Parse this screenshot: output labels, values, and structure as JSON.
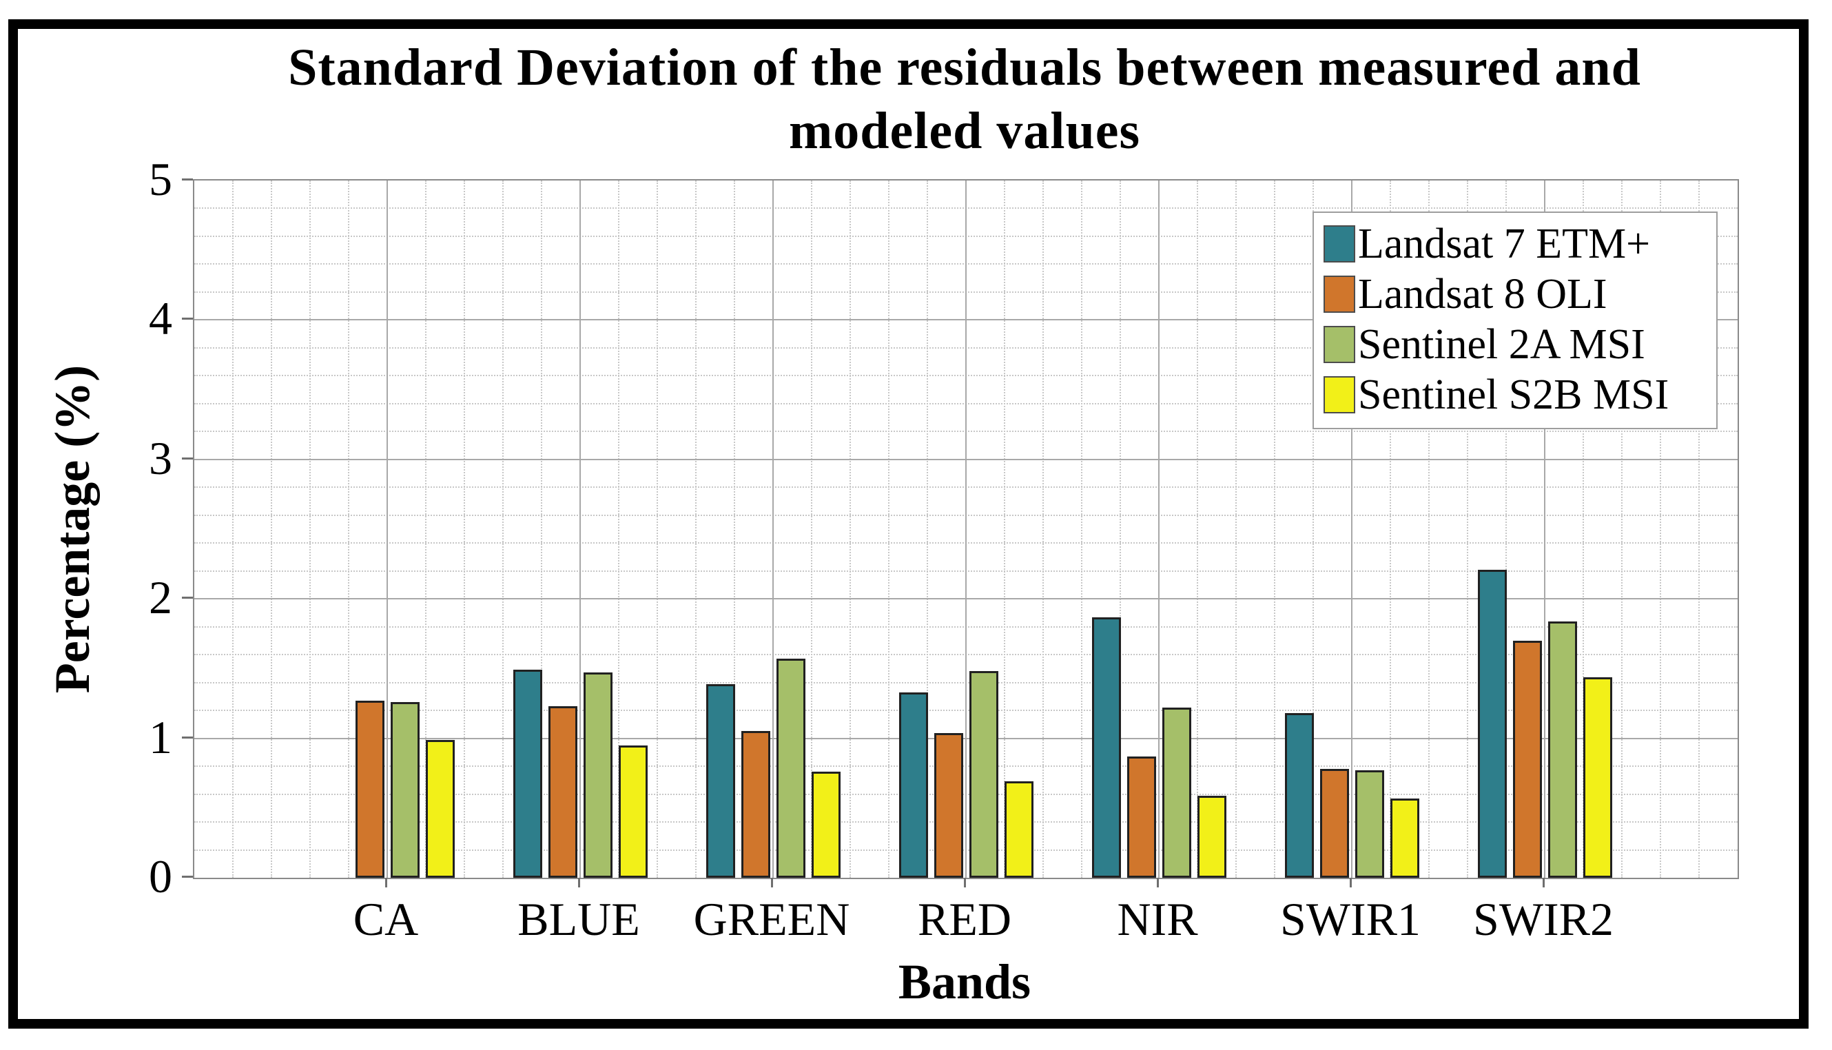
{
  "figure": {
    "title_line1": "Standard Deviation of the residuals between measured and",
    "title_line2": "modeled values"
  },
  "chart_data": {
    "type": "bar",
    "title": "Standard Deviation of the residuals between measured and modeled values",
    "xlabel": "Bands",
    "ylabel": "Percentage (%)",
    "categories": [
      "CA",
      "BLUE",
      "GREEN",
      "RED",
      "NIR",
      "SWIR1",
      "SWIR2"
    ],
    "series": [
      {
        "name": "Landsat 7 ETM+",
        "color": "#2E7E8B",
        "values": [
          null,
          1.49,
          1.39,
          1.33,
          1.87,
          1.18,
          2.21
        ]
      },
      {
        "name": "Landsat 8 OLI",
        "color": "#D0762C",
        "values": [
          1.27,
          1.23,
          1.05,
          1.04,
          0.87,
          0.78,
          1.7
        ]
      },
      {
        "name": "Sentinel 2A MSI",
        "color": "#A5BF69",
        "values": [
          1.26,
          1.47,
          1.57,
          1.48,
          1.22,
          0.77,
          1.84
        ]
      },
      {
        "name": "Sentinel S2B MSI",
        "color": "#F2F018",
        "values": [
          0.99,
          0.95,
          0.76,
          0.69,
          0.59,
          0.57,
          1.44
        ]
      }
    ],
    "ylim": [
      0,
      5
    ],
    "yticks": [
      0,
      1,
      2,
      3,
      4,
      5
    ],
    "grid": "major solid gray + minor dotted, horizontal minor step 0.2, vertical minor step 0.2 of category spacing",
    "legend_position": "top-right inside plot",
    "legend_entries": [
      "Landsat 7 ETM+",
      "Landsat 8 OLI",
      "Sentinel 2A MSI",
      "Sentinel S2B MSI"
    ]
  }
}
